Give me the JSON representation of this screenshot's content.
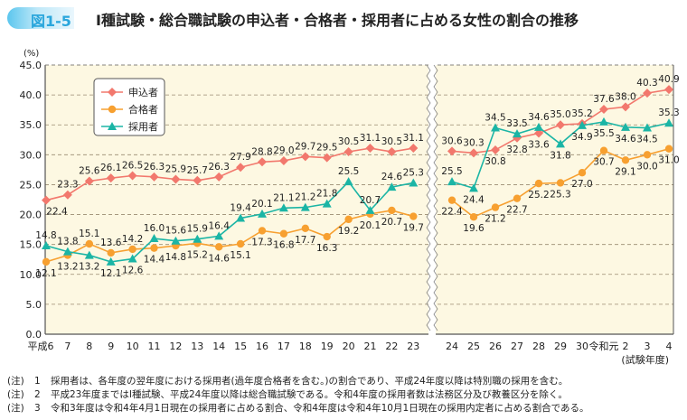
{
  "figure": {
    "badge": "図1-5",
    "title": "Ⅰ種試験・総合職試験の申込者・合格者・採用者に占める女性の割合の推移"
  },
  "chart_data": {
    "type": "line",
    "title": "Ⅰ種試験・総合職試験の申込者・合格者・採用者に占める女性の割合の推移",
    "ylabel": "(%)",
    "xlabel": "(試験年度)",
    "ylim": [
      0,
      45
    ],
    "yticks": [
      "0.0",
      "5.0",
      "10.0",
      "15.0",
      "20.0",
      "25.0",
      "30.0",
      "35.0",
      "40.0",
      "45.0"
    ],
    "grid": true,
    "axis_break": "between 23 and 24",
    "legend_placement": "top-left",
    "segments": [
      {
        "categories": [
          "平成6",
          "7",
          "8",
          "9",
          "10",
          "11",
          "12",
          "13",
          "14",
          "15",
          "16",
          "17",
          "18",
          "19",
          "20",
          "21",
          "22",
          "23"
        ],
        "series": [
          {
            "name": "申込者",
            "color": "#f2786d",
            "marker": "diamond",
            "values": [
              22.4,
              23.3,
              25.6,
              26.1,
              26.5,
              26.3,
              25.9,
              25.7,
              26.3,
              27.9,
              28.8,
              29.0,
              29.7,
              29.5,
              30.5,
              31.1,
              30.5,
              31.1
            ]
          },
          {
            "name": "合格者",
            "color": "#f7a030",
            "marker": "circle",
            "values": [
              12.1,
              13.2,
              15.1,
              13.6,
              14.2,
              14.4,
              14.8,
              15.2,
              14.6,
              15.1,
              17.3,
              16.8,
              17.7,
              16.3,
              19.2,
              20.1,
              20.7,
              19.7
            ]
          },
          {
            "name": "採用者",
            "color": "#1bb5a5",
            "marker": "triangle",
            "values": [
              14.8,
              13.8,
              13.2,
              12.1,
              12.6,
              16.0,
              15.6,
              15.9,
              16.4,
              19.4,
              20.1,
              21.1,
              21.2,
              21.8,
              25.5,
              20.7,
              24.6,
              25.3
            ]
          }
        ]
      },
      {
        "categories": [
          "24",
          "25",
          "26",
          "27",
          "28",
          "29",
          "30",
          "令和元",
          "2",
          "3",
          "4"
        ],
        "series": [
          {
            "name": "申込者",
            "color": "#f2786d",
            "marker": "diamond",
            "values": [
              30.6,
              30.3,
              30.8,
              32.8,
              33.6,
              35.0,
              35.2,
              37.6,
              38.0,
              40.3,
              40.9
            ]
          },
          {
            "name": "合格者",
            "color": "#f7a030",
            "marker": "circle",
            "values": [
              22.4,
              19.6,
              21.2,
              22.7,
              25.2,
              25.3,
              27.0,
              30.7,
              29.1,
              30.0,
              31.0
            ]
          },
          {
            "name": "採用者",
            "color": "#1bb5a5",
            "marker": "triangle",
            "values": [
              25.5,
              24.4,
              34.5,
              33.5,
              34.6,
              31.8,
              34.9,
              35.5,
              34.6,
              34.5,
              35.3
            ]
          }
        ]
      }
    ],
    "legend": [
      "申込者",
      "合格者",
      "採用者"
    ],
    "plot_background": "#fdf8e2"
  },
  "notes": [
    {
      "label": "(注)",
      "num": "1",
      "text": "採用者は、各年度の翌年度における採用者(過年度合格者を含む。)の割合であり、平成24年度以降は特別職の採用を含む。"
    },
    {
      "label": "(注)",
      "num": "2",
      "text": "平成23年度まではⅠ種試験、平成24年度以降は総合職試験である。令和4年度の採用者数は法務区分及び教養区分を除く。"
    },
    {
      "label": "(注)",
      "num": "3",
      "text": "令和3年度は令和4年4月1日現在の採用者に占める割合、令和4年度は令和4年10月1日現在の採用内定者に占める割合である。"
    }
  ]
}
